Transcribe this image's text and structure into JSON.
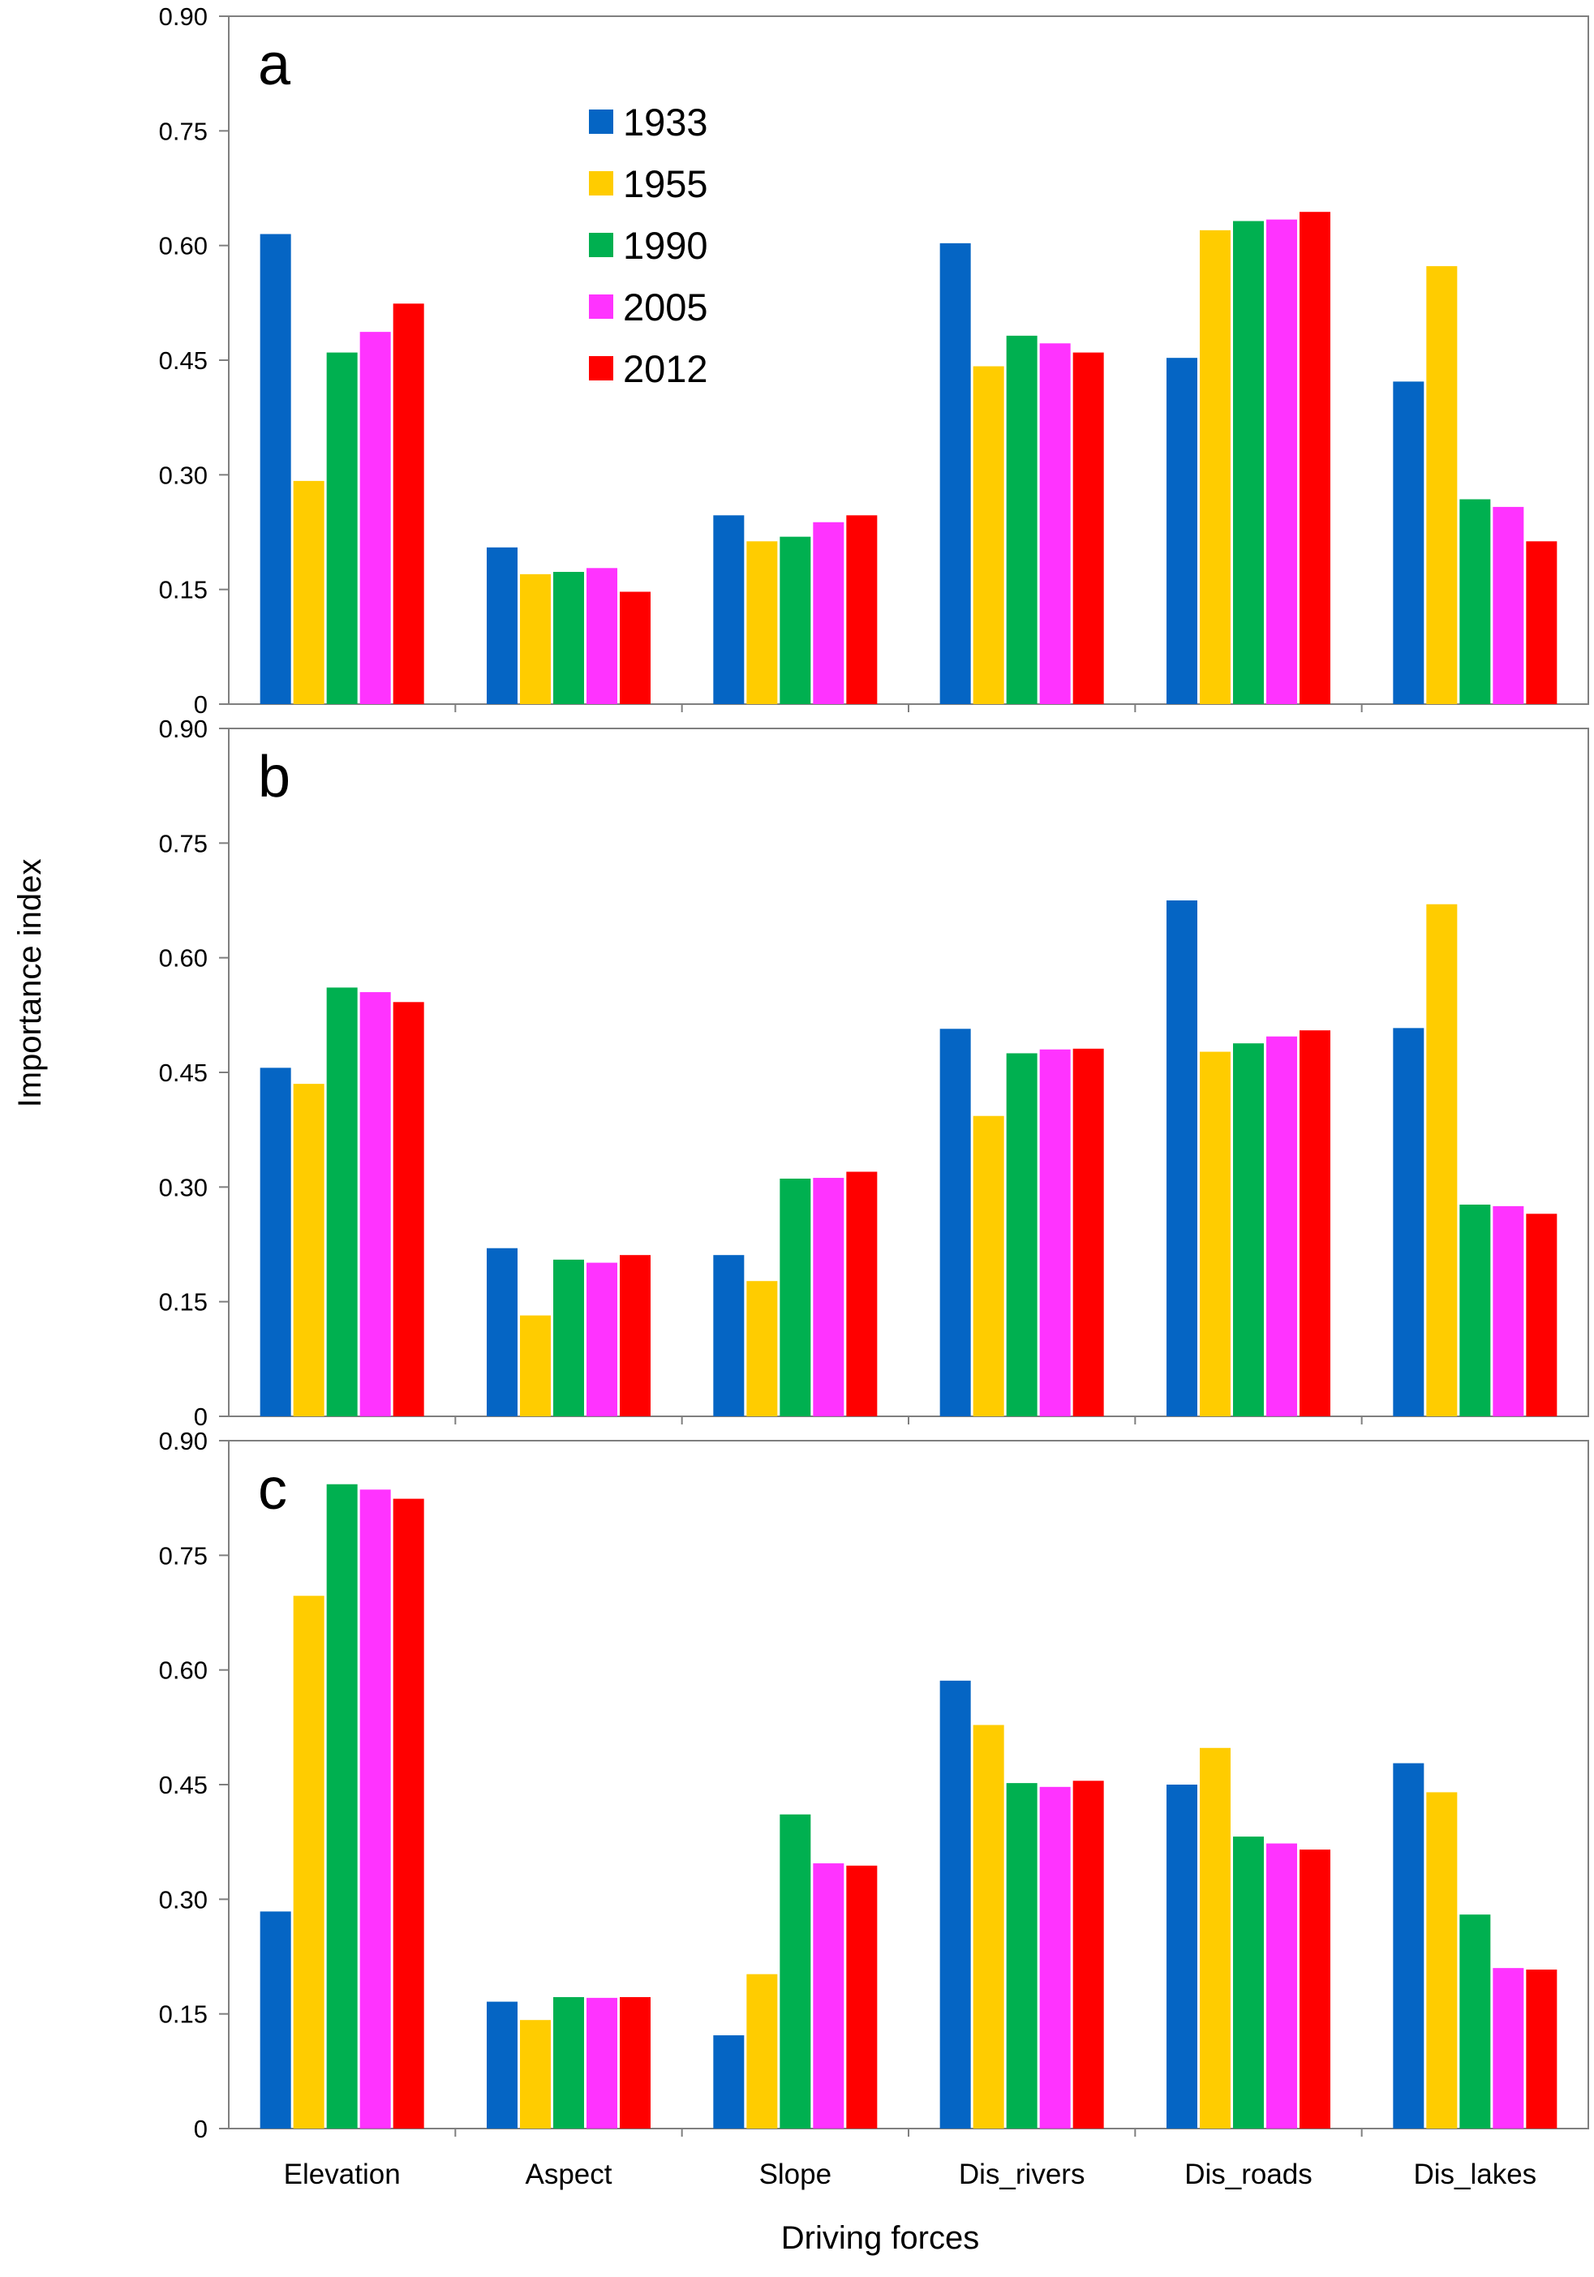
{
  "chart_data": {
    "type": "bar",
    "ylabel": "Importance index",
    "xlabel": "Driving forces",
    "categories": [
      "Elevation",
      "Aspect",
      "Slope",
      "Dis_rivers",
      "Dis_roads",
      "Dis_lakes"
    ],
    "ylim": [
      0,
      0.9
    ],
    "yticks": [
      "0",
      "0.15",
      "0.30",
      "0.45",
      "0.60",
      "0.75",
      "0.90"
    ],
    "legend": {
      "position": "top-left",
      "entries": [
        {
          "label": "1933",
          "color": "#0565c4"
        },
        {
          "label": "1955",
          "color": "#ffcc00"
        },
        {
          "label": "1990",
          "color": "#00b050"
        },
        {
          "label": "2005",
          "color": "#ff33ff"
        },
        {
          "label": "2012",
          "color": "#ff0000"
        }
      ]
    },
    "panels": [
      {
        "label": "a",
        "series": [
          {
            "name": "1933",
            "values": [
              0.615,
              0.205,
              0.247,
              0.603,
              0.453,
              0.422
            ]
          },
          {
            "name": "1955",
            "values": [
              0.292,
              0.17,
              0.213,
              0.442,
              0.62,
              0.573
            ]
          },
          {
            "name": "1990",
            "values": [
              0.46,
              0.173,
              0.219,
              0.482,
              0.632,
              0.268
            ]
          },
          {
            "name": "2005",
            "values": [
              0.487,
              0.178,
              0.238,
              0.472,
              0.634,
              0.258
            ]
          },
          {
            "name": "2012",
            "values": [
              0.524,
              0.147,
              0.247,
              0.46,
              0.644,
              0.213
            ]
          }
        ]
      },
      {
        "label": "b",
        "series": [
          {
            "name": "1933",
            "values": [
              0.456,
              0.22,
              0.211,
              0.507,
              0.675,
              0.508
            ]
          },
          {
            "name": "1955",
            "values": [
              0.435,
              0.132,
              0.177,
              0.393,
              0.477,
              0.67
            ]
          },
          {
            "name": "1990",
            "values": [
              0.561,
              0.205,
              0.311,
              0.475,
              0.488,
              0.277
            ]
          },
          {
            "name": "2005",
            "values": [
              0.555,
              0.201,
              0.312,
              0.48,
              0.497,
              0.275
            ]
          },
          {
            "name": "2012",
            "values": [
              0.542,
              0.211,
              0.32,
              0.481,
              0.505,
              0.265
            ]
          }
        ]
      },
      {
        "label": "c",
        "series": [
          {
            "name": "1933",
            "values": [
              0.284,
              0.166,
              0.122,
              0.586,
              0.45,
              0.478
            ]
          },
          {
            "name": "1955",
            "values": [
              0.697,
              0.142,
              0.202,
              0.528,
              0.498,
              0.44
            ]
          },
          {
            "name": "1990",
            "values": [
              0.843,
              0.172,
              0.411,
              0.452,
              0.382,
              0.28
            ]
          },
          {
            "name": "2005",
            "values": [
              0.836,
              0.171,
              0.347,
              0.447,
              0.373,
              0.21
            ]
          },
          {
            "name": "2012",
            "values": [
              0.824,
              0.172,
              0.344,
              0.455,
              0.365,
              0.208
            ]
          }
        ]
      }
    ]
  }
}
